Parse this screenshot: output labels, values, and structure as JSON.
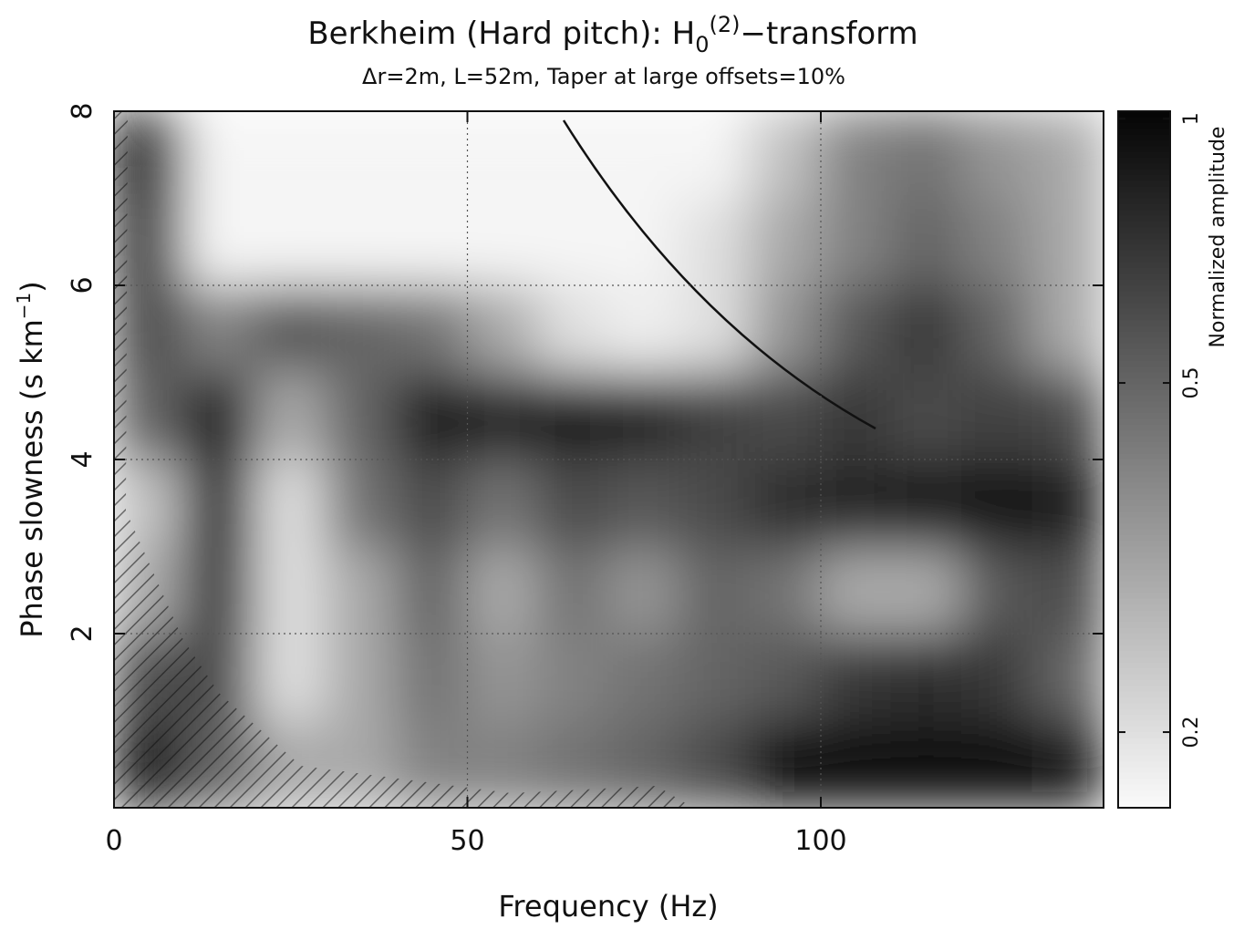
{
  "chart_data": {
    "type": "heatmap",
    "title": [
      "Berkheim (Hard pitch): H",
      "0",
      "(2)",
      "−transform"
    ],
    "subtitle": "Δr=2m, L=52m, Taper at large offsets=10%",
    "x_label": "Frequency (Hz)",
    "y_label": [
      "Phase slowness (s km",
      "−1",
      ")"
    ],
    "colorbar_label": "Normalized amplitude",
    "xlim": [
      0,
      140
    ],
    "xticks": [
      0,
      50,
      100
    ],
    "ylim": [
      0,
      8
    ],
    "yticks": [
      2,
      4,
      6,
      8
    ],
    "grid": true,
    "colorbar": {
      "lim": [
        0.164,
        1.02
      ],
      "ticks": [
        0.2,
        0.5,
        1
      ],
      "log": true
    },
    "x": [
      5,
      15,
      25,
      35,
      45,
      55,
      65,
      75,
      85,
      95,
      105,
      115,
      125,
      135
    ],
    "y": [
      0.5,
      1.5,
      2.5,
      3.5,
      4.5,
      5.5,
      6.5,
      7.5
    ],
    "z": [
      [
        0.9,
        0.5,
        0.3,
        0.3,
        0.4,
        0.4,
        0.45,
        0.5,
        0.6,
        0.95,
        1,
        1,
        1,
        0.9
      ],
      [
        0.6,
        0.6,
        0.2,
        0.3,
        0.45,
        0.35,
        0.4,
        0.45,
        0.5,
        0.55,
        0.7,
        0.75,
        0.7,
        0.5
      ],
      [
        0.3,
        0.7,
        0.2,
        0.3,
        0.5,
        0.3,
        0.45,
        0.35,
        0.5,
        0.45,
        0.3,
        0.3,
        0.55,
        0.6
      ],
      [
        0.25,
        0.8,
        0.2,
        0.45,
        0.6,
        0.45,
        0.6,
        0.55,
        0.6,
        0.75,
        0.8,
        0.85,
        0.9,
        0.85
      ],
      [
        0.5,
        0.85,
        0.3,
        0.5,
        0.85,
        0.8,
        0.85,
        0.8,
        0.65,
        0.6,
        0.7,
        0.6,
        0.65,
        0.6
      ],
      [
        0.6,
        0.4,
        0.55,
        0.5,
        0.45,
        0.3,
        0.2,
        0.18,
        0.2,
        0.35,
        0.55,
        0.7,
        0.5,
        0.3
      ],
      [
        0.7,
        0.17,
        0.17,
        0.17,
        0.17,
        0.17,
        0.17,
        0.17,
        0.2,
        0.3,
        0.4,
        0.5,
        0.4,
        0.3
      ],
      [
        0.9,
        0.17,
        0.17,
        0.17,
        0.17,
        0.17,
        0.17,
        0.17,
        0.17,
        0.25,
        0.4,
        0.45,
        0.35,
        0.3
      ]
    ]
  }
}
